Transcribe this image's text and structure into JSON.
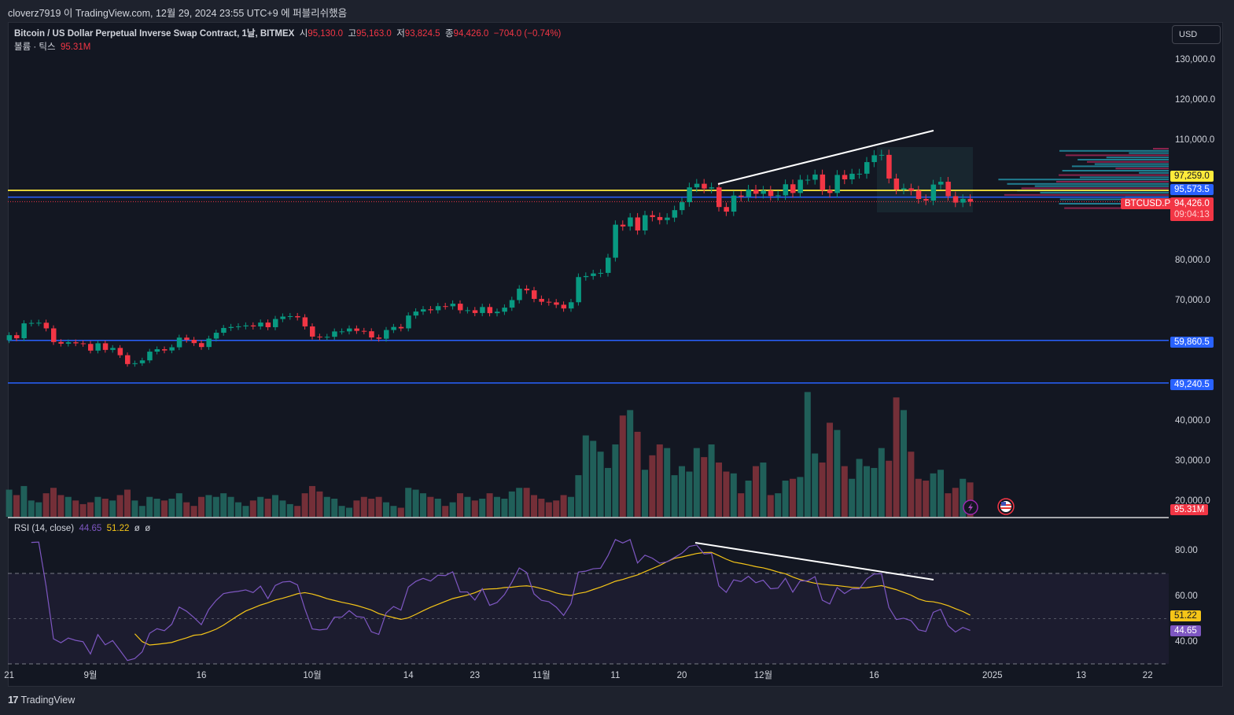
{
  "publish_line": "cloverz7919 이 TradingView.com, 12월 29, 2024 23:55 UTC+9 에 퍼블리쉬했음",
  "legend": {
    "symbol": "Bitcoin / US Dollar Perpetual Inverse Swap Contract, 1날, BITMEX",
    "open_label": "시",
    "open": "95,130.0",
    "high_label": "고",
    "high": "95,163.0",
    "low_label": "저",
    "low": "93,824.5",
    "close_label": "종",
    "close": "94,426.0",
    "change": "−704.0 (−0.74%)",
    "volume_label": "볼륨 · 틱스",
    "volume": "95.31M"
  },
  "rsi_legend": {
    "label": "RSI (14, close)",
    "rsi": "44.65",
    "ma": "51.22",
    "n1": "ø",
    "n2": "ø"
  },
  "currency_button": "USD",
  "badges": {
    "yellow_line": "97,259.0",
    "blue_line": "95,573.5",
    "ticker": "BTCUSD.P",
    "last_price": "94,426.0",
    "countdown": "09:04:13",
    "support1": "59,860.5",
    "support2": "49,240.5",
    "volume": "95.31M",
    "rsi_ma": "51.22",
    "rsi": "44.65"
  },
  "footer": {
    "logo": "17",
    "brand": "TradingView"
  },
  "colors": {
    "up": "#089981",
    "down": "#f23645",
    "yellow": "#ffeb3b",
    "blue": "#2962ff",
    "rsi": "#7e57c2",
    "rsi_ma": "#f5c518"
  },
  "chart_data": {
    "type": "candlestick",
    "start_date": "2024-08-21",
    "closes": [
      61150,
      60380,
      64100,
      64200,
      64250,
      62850,
      59450,
      59030,
      59380,
      59120,
      58970,
      57300,
      59130,
      57480,
      57970,
      56160,
      53950,
      54160,
      54870,
      57050,
      57650,
      57340,
      58130,
      60540,
      60000,
      59180,
      58200,
      60300,
      61760,
      62950,
      63200,
      63350,
      63580,
      63330,
      64300,
      63140,
      65180,
      65790,
      65890,
      65600,
      63330,
      60800,
      60650,
      60750,
      62080,
      62090,
      62820,
      62220,
      62130,
      60580,
      60270,
      62440,
      63200,
      62850,
      66050,
      67040,
      67600,
      67370,
      68390,
      68360,
      69000,
      67370,
      67370,
      66680,
      68170,
      66640,
      67000,
      68020,
      69900,
      72740,
      72330,
      70200,
      69480,
      69330,
      68740,
      67810,
      69360,
      75640,
      75900,
      76540,
      76680,
      80470,
      88700,
      88260,
      90500,
      87250,
      91060,
      90600,
      89850,
      90460,
      92320,
      94300,
      98000,
      98900,
      97700,
      98000,
      93100,
      91950,
      95950,
      95650,
      97450,
      96400,
      97200,
      95840,
      96000,
      98770,
      96600,
      99900,
      99900,
      101200,
      97300,
      96600,
      101100,
      100000,
      101400,
      101400,
      104300,
      106000,
      106100,
      100200,
      97450,
      97750,
      97200,
      95100,
      94700,
      98700,
      99400,
      95800,
      94200,
      95130,
      94426
    ],
    "first_open": 59900,
    "volumes_m": [
      150,
      120,
      170,
      90,
      80,
      130,
      160,
      120,
      110,
      90,
      70,
      80,
      110,
      100,
      90,
      120,
      150,
      90,
      60,
      110,
      100,
      90,
      100,
      130,
      80,
      60,
      110,
      120,
      110,
      130,
      110,
      80,
      60,
      90,
      110,
      100,
      120,
      90,
      70,
      60,
      130,
      170,
      140,
      110,
      100,
      60,
      50,
      90,
      110,
      100,
      110,
      80,
      60,
      50,
      160,
      150,
      130,
      110,
      100,
      60,
      80,
      130,
      110,
      90,
      100,
      130,
      110,
      100,
      140,
      160,
      160,
      120,
      100,
      80,
      90,
      120,
      110,
      230,
      450,
      420,
      360,
      270,
      400,
      560,
      590,
      470,
      260,
      340,
      400,
      380,
      230,
      280,
      250,
      380,
      330,
      400,
      300,
      250,
      240,
      130,
      200,
      280,
      300,
      120,
      130,
      200,
      210,
      220,
      690,
      350,
      300,
      520,
      480,
      280,
      210,
      320,
      280,
      270,
      380,
      310,
      660,
      590,
      360,
      210,
      200,
      240,
      260,
      130,
      160,
      210,
      190,
      95.31
    ],
    "price_axis": [
      "130,000.0",
      "120,000.0",
      "110,000.0",
      "80,000.0",
      "70,000.0",
      "40,000.0",
      "30,000.0",
      "20,000.0"
    ],
    "price_axis_values": [
      130000,
      120000,
      110000,
      80000,
      70000,
      40000,
      30000,
      20000
    ],
    "horizontal_lines": [
      97259.0,
      95573.5,
      59860.5,
      49240.5
    ],
    "last_price": 94426.0,
    "rsi_axis": [
      "80.00",
      "60.00",
      "40.00"
    ],
    "rsi_axis_values": [
      80,
      60,
      40
    ],
    "rsi_bands": [
      70,
      50,
      30
    ],
    "rsi_period": 14,
    "rsi_current": 44.65,
    "rsi_ma_current": 51.22,
    "time_axis": [
      {
        "label": "21",
        "date": "2024-08-21"
      },
      {
        "label": "9월",
        "date": "2024-09-01"
      },
      {
        "label": "16",
        "date": "2024-09-16"
      },
      {
        "label": "10월",
        "date": "2024-10-01"
      },
      {
        "label": "14",
        "date": "2024-10-14"
      },
      {
        "label": "23",
        "date": "2024-10-23"
      },
      {
        "label": "11월",
        "date": "2024-11-01"
      },
      {
        "label": "11",
        "date": "2024-11-11"
      },
      {
        "label": "20",
        "date": "2024-11-20"
      },
      {
        "label": "12월",
        "date": "2024-12-01"
      },
      {
        "label": "16",
        "date": "2024-12-16"
      },
      {
        "label": "2025",
        "date": "2025-01-01"
      },
      {
        "label": "13",
        "date": "2025-01-13"
      },
      {
        "label": "22",
        "date": "2025-01-22"
      }
    ]
  }
}
